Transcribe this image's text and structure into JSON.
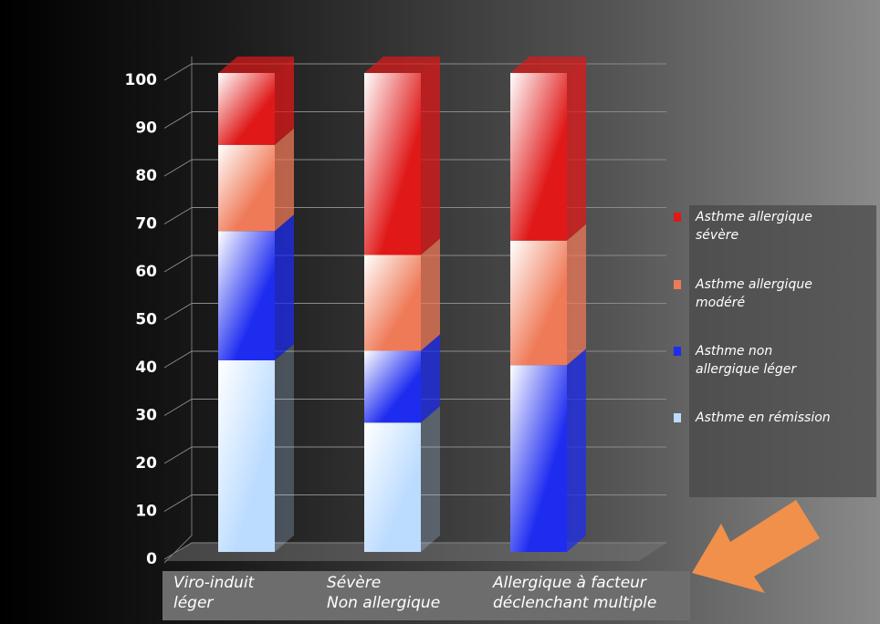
{
  "chart_data": {
    "type": "bar3d_stacked",
    "categories": [
      "Viro-induit\nléger",
      "Sévère\nNon allergique",
      "Allergique à facteur\ndéclenchant multiple"
    ],
    "series": [
      {
        "name": "Asthme en rémission",
        "color": "#bcdcff",
        "values": [
          40,
          27,
          0
        ]
      },
      {
        "name": "Asthme non\nallergique léger",
        "color": "#1e2cf0",
        "values": [
          27,
          15,
          39
        ]
      },
      {
        "name": "Asthme allergique\nmodéré",
        "color": "#ef7a58",
        "values": [
          18,
          20,
          26
        ]
      },
      {
        "name": "Asthme allergique\nsévère",
        "color": "#e01818",
        "values": [
          15,
          38,
          35
        ]
      }
    ],
    "ylim": [
      0,
      100
    ],
    "yticks": [
      0,
      10,
      20,
      30,
      40,
      50,
      60,
      70,
      80,
      90,
      100
    ],
    "grid": true
  }
}
